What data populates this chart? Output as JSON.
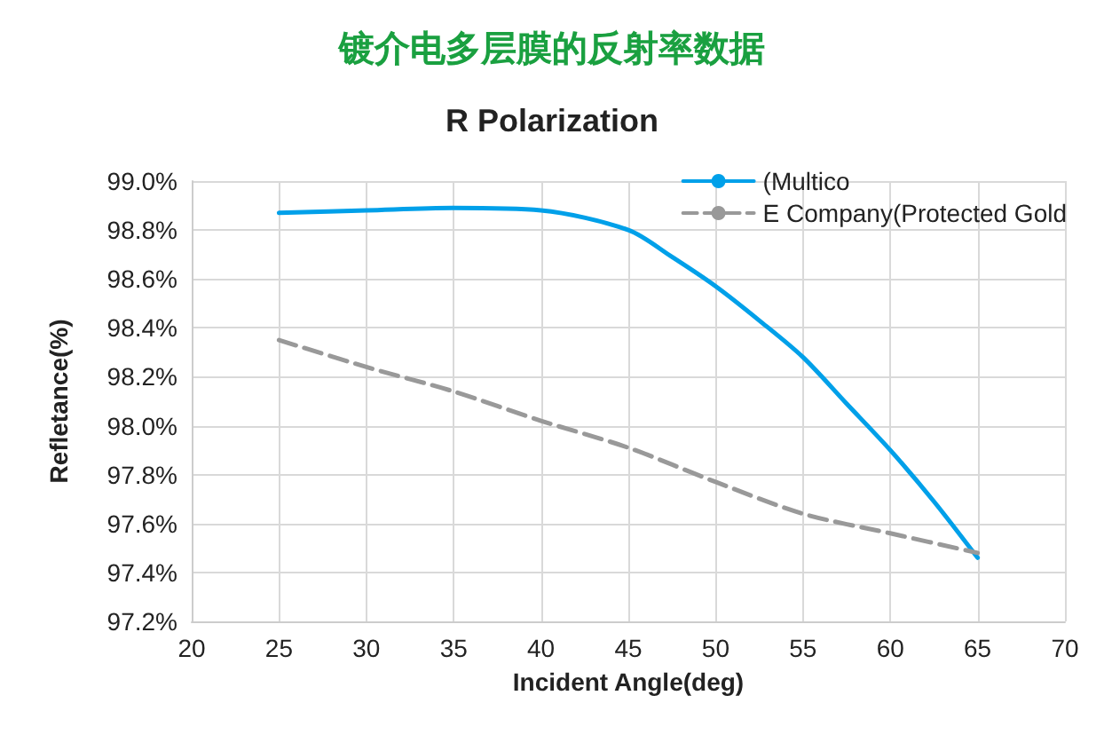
{
  "chart_data": {
    "type": "line",
    "title": "镀介电多层膜的反射率数据",
    "subtitle": "R Polarization",
    "xlabel": "Incident Angle(deg)",
    "ylabel": "Refletance(%)",
    "series": [
      {
        "name": "(Multico",
        "color": "#00a0e9",
        "line_style": "solid",
        "x": [
          25,
          30,
          35,
          40,
          45,
          47.5,
          50,
          52.5,
          55,
          57.5,
          60,
          62.5,
          65
        ],
        "values": [
          98.87,
          98.88,
          98.89,
          98.88,
          98.8,
          98.69,
          98.57,
          98.43,
          98.28,
          98.09,
          97.9,
          97.69,
          97.46
        ]
      },
      {
        "name": "E Company(Protected Gold",
        "color": "#999999",
        "line_style": "dashed",
        "x": [
          25,
          30,
          35,
          40,
          45,
          50,
          55,
          60,
          65
        ],
        "values": [
          98.35,
          98.24,
          98.14,
          98.02,
          97.91,
          97.77,
          97.64,
          97.56,
          97.48
        ]
      }
    ],
    "xlim": [
      20,
      70
    ],
    "xticks": [
      20,
      25,
      30,
      35,
      40,
      45,
      50,
      55,
      60,
      65,
      70
    ],
    "ylim": [
      97.2,
      99.0
    ],
    "yticks": [
      {
        "value": 97.2,
        "label": "97.2%"
      },
      {
        "value": 97.4,
        "label": "97.4%"
      },
      {
        "value": 97.6,
        "label": "97.6%"
      },
      {
        "value": 97.8,
        "label": "97.8%"
      },
      {
        "value": 98.0,
        "label": "98.0%"
      },
      {
        "value": 98.2,
        "label": "98.2%"
      },
      {
        "value": 98.4,
        "label": "98.4%"
      },
      {
        "value": 98.6,
        "label": "98.6%"
      },
      {
        "value": 98.8,
        "label": "98.8%"
      },
      {
        "value": 99.0,
        "label": "99.0%"
      }
    ],
    "grid": true,
    "legend": "top right",
    "marker": "none"
  }
}
